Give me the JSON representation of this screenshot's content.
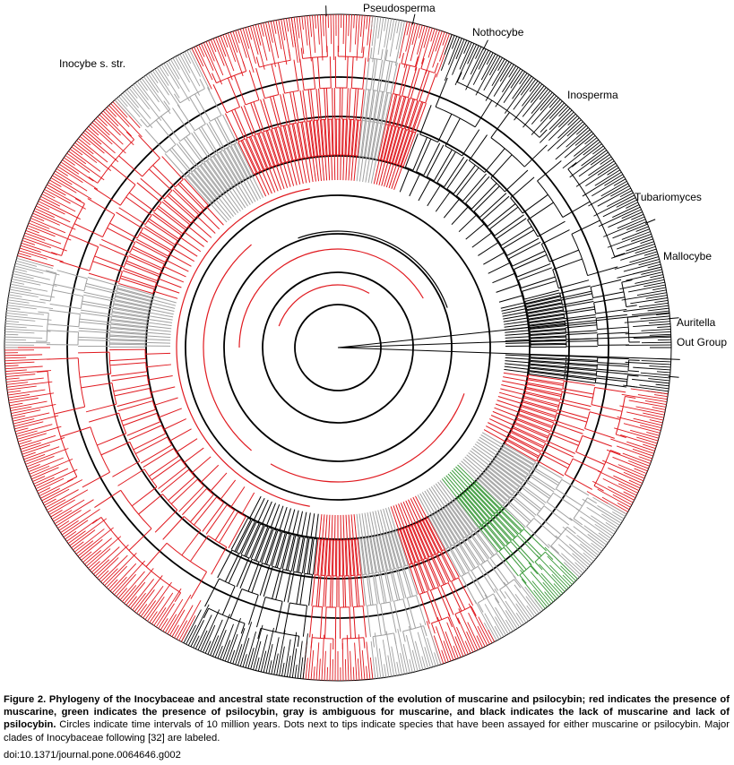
{
  "figure": {
    "clades": [
      {
        "name": "Pseudosperma"
      },
      {
        "name": "Nothocybe"
      },
      {
        "name": "Inosperma"
      },
      {
        "name": "Tubariomyces"
      },
      {
        "name": "Mallocybe"
      },
      {
        "name": "Auritella"
      },
      {
        "name": "Out Group"
      },
      {
        "name": "Inocybe s. str."
      }
    ],
    "colors": {
      "muscarine": "#e0191f",
      "psilocybin": "#3a9a3a",
      "ambiguous": "#a0a0a0",
      "absent": "#000000"
    }
  },
  "caption": {
    "bold_text": "Figure 2. Phylogeny of the Inocybaceae and ancestral state reconstruction of the evolution of muscarine and psilocybin; red indicates the presence of muscarine, green indicates the presence of psilocybin, gray is ambiguous for muscarine, and black indicates the lack of muscarine and lack of psilocybin.",
    "text": " Circles indicate time intervals of 10 million years. Dots next to tips indicate species that have been assayed for either muscarine or psilocybin. Major clades of Inocybaceae following [32] are labeled.",
    "doi": "doi:10.1371/journal.pone.0064646.g002"
  }
}
